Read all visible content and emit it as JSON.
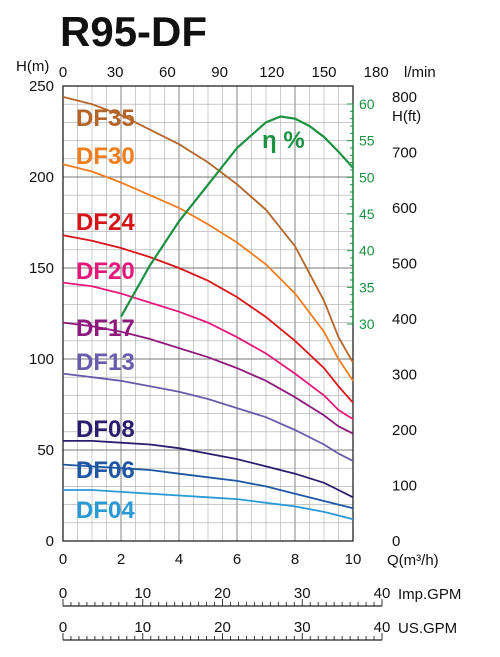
{
  "title": "R95-DF",
  "chart_data": {
    "type": "line",
    "xlabel": "Q(m³/h)",
    "xlim": [
      0,
      10
    ],
    "x_ticks": [
      "0",
      "2",
      "4",
      "6",
      "8",
      "10"
    ],
    "top_axis": {
      "label": "l/min",
      "ticks": [
        "0",
        "30",
        "60",
        "90",
        "120",
        "150",
        "180"
      ]
    },
    "ylabel_left": "H(m)",
    "ylim": [
      0,
      250
    ],
    "y_ticks": [
      "0",
      "50",
      "100",
      "150",
      "200",
      "250"
    ],
    "right_axis_ft": {
      "label": "H(ft)",
      "ticks": [
        "0",
        "100",
        "200",
        "300",
        "400",
        "500",
        "600",
        "700",
        "800"
      ]
    },
    "efficiency_axis": {
      "label": "η %",
      "ticks": [
        "30",
        "35",
        "40",
        "45",
        "50",
        "55",
        "60"
      ],
      "range": [
        30,
        60
      ]
    },
    "imp_gpm": {
      "label": "Imp.GPM",
      "ticks": [
        "0",
        "10",
        "20",
        "30",
        "40"
      ]
    },
    "us_gpm": {
      "label": "US.GPM",
      "ticks": [
        "0",
        "10",
        "20",
        "30",
        "40"
      ]
    },
    "grid": true,
    "series": [
      {
        "name": "DF35",
        "color": "#b5652a",
        "x": [
          0,
          1,
          2,
          3,
          4,
          5,
          6,
          7,
          8,
          9,
          9.5,
          10
        ],
        "y": [
          244,
          240,
          234,
          226,
          218,
          208,
          196,
          182,
          162,
          132,
          112,
          98
        ]
      },
      {
        "name": "DF30",
        "color": "#f07d1e",
        "x": [
          0,
          1,
          2,
          3,
          4,
          5,
          6,
          7,
          8,
          9,
          9.5,
          10
        ],
        "y": [
          207,
          203,
          197,
          190,
          183,
          174,
          164,
          152,
          136,
          115,
          100,
          88
        ]
      },
      {
        "name": "DF24",
        "color": "#d7141a",
        "x": [
          0,
          1,
          2,
          3,
          4,
          5,
          6,
          7,
          8,
          9,
          9.5,
          10
        ],
        "y": [
          168,
          165,
          161,
          156,
          150,
          143,
          134,
          123,
          110,
          95,
          85,
          76
        ]
      },
      {
        "name": "DF20",
        "color": "#e6197a",
        "x": [
          0,
          1,
          2,
          3,
          4,
          5,
          6,
          7,
          8,
          9,
          9.5,
          10
        ],
        "y": [
          142,
          140,
          136,
          131,
          126,
          120,
          112,
          103,
          92,
          80,
          72,
          67
        ]
      },
      {
        "name": "DF17",
        "color": "#8e1a7e",
        "x": [
          0,
          1,
          2,
          3,
          4,
          5,
          6,
          7,
          8,
          9,
          9.5,
          10
        ],
        "y": [
          120,
          118,
          115,
          111,
          106,
          101,
          95,
          88,
          79,
          69,
          63,
          59
        ]
      },
      {
        "name": "DF13",
        "color": "#6a5cab",
        "x": [
          0,
          1,
          2,
          3,
          4,
          5,
          6,
          7,
          8,
          9,
          9.5,
          10
        ],
        "y": [
          92,
          90,
          88,
          85,
          82,
          78,
          73,
          68,
          61,
          53,
          48,
          44
        ]
      },
      {
        "name": "DF08",
        "color": "#2a1f6e",
        "x": [
          0,
          1,
          2,
          3,
          4,
          5,
          6,
          7,
          8,
          9,
          9.5,
          10
        ],
        "y": [
          55,
          55,
          54,
          53,
          51,
          48,
          45,
          41,
          37,
          32,
          28,
          24
        ]
      },
      {
        "name": "DF06",
        "color": "#1f57a3",
        "x": [
          0,
          1,
          2,
          3,
          4,
          5,
          6,
          7,
          8,
          9,
          9.5,
          10
        ],
        "y": [
          42,
          41,
          40,
          39,
          37,
          35,
          33,
          30,
          26,
          22,
          20,
          18
        ]
      },
      {
        "name": "DF04",
        "color": "#2a9ad6",
        "x": [
          0,
          1,
          2,
          3,
          4,
          5,
          6,
          7,
          8,
          9,
          9.5,
          10
        ],
        "y": [
          28,
          28,
          27,
          26,
          25,
          24,
          23,
          21,
          19,
          16,
          14,
          12
        ]
      }
    ],
    "efficiency": {
      "name": "η %",
      "color": "#1a9140",
      "x": [
        2,
        3,
        4,
        5,
        6,
        7,
        7.5,
        8,
        8.5,
        9,
        9.5,
        10
      ],
      "y": [
        31,
        38,
        44,
        49,
        54,
        57.5,
        58.3,
        58,
        57,
        55.5,
        53.5,
        51.3
      ]
    }
  }
}
